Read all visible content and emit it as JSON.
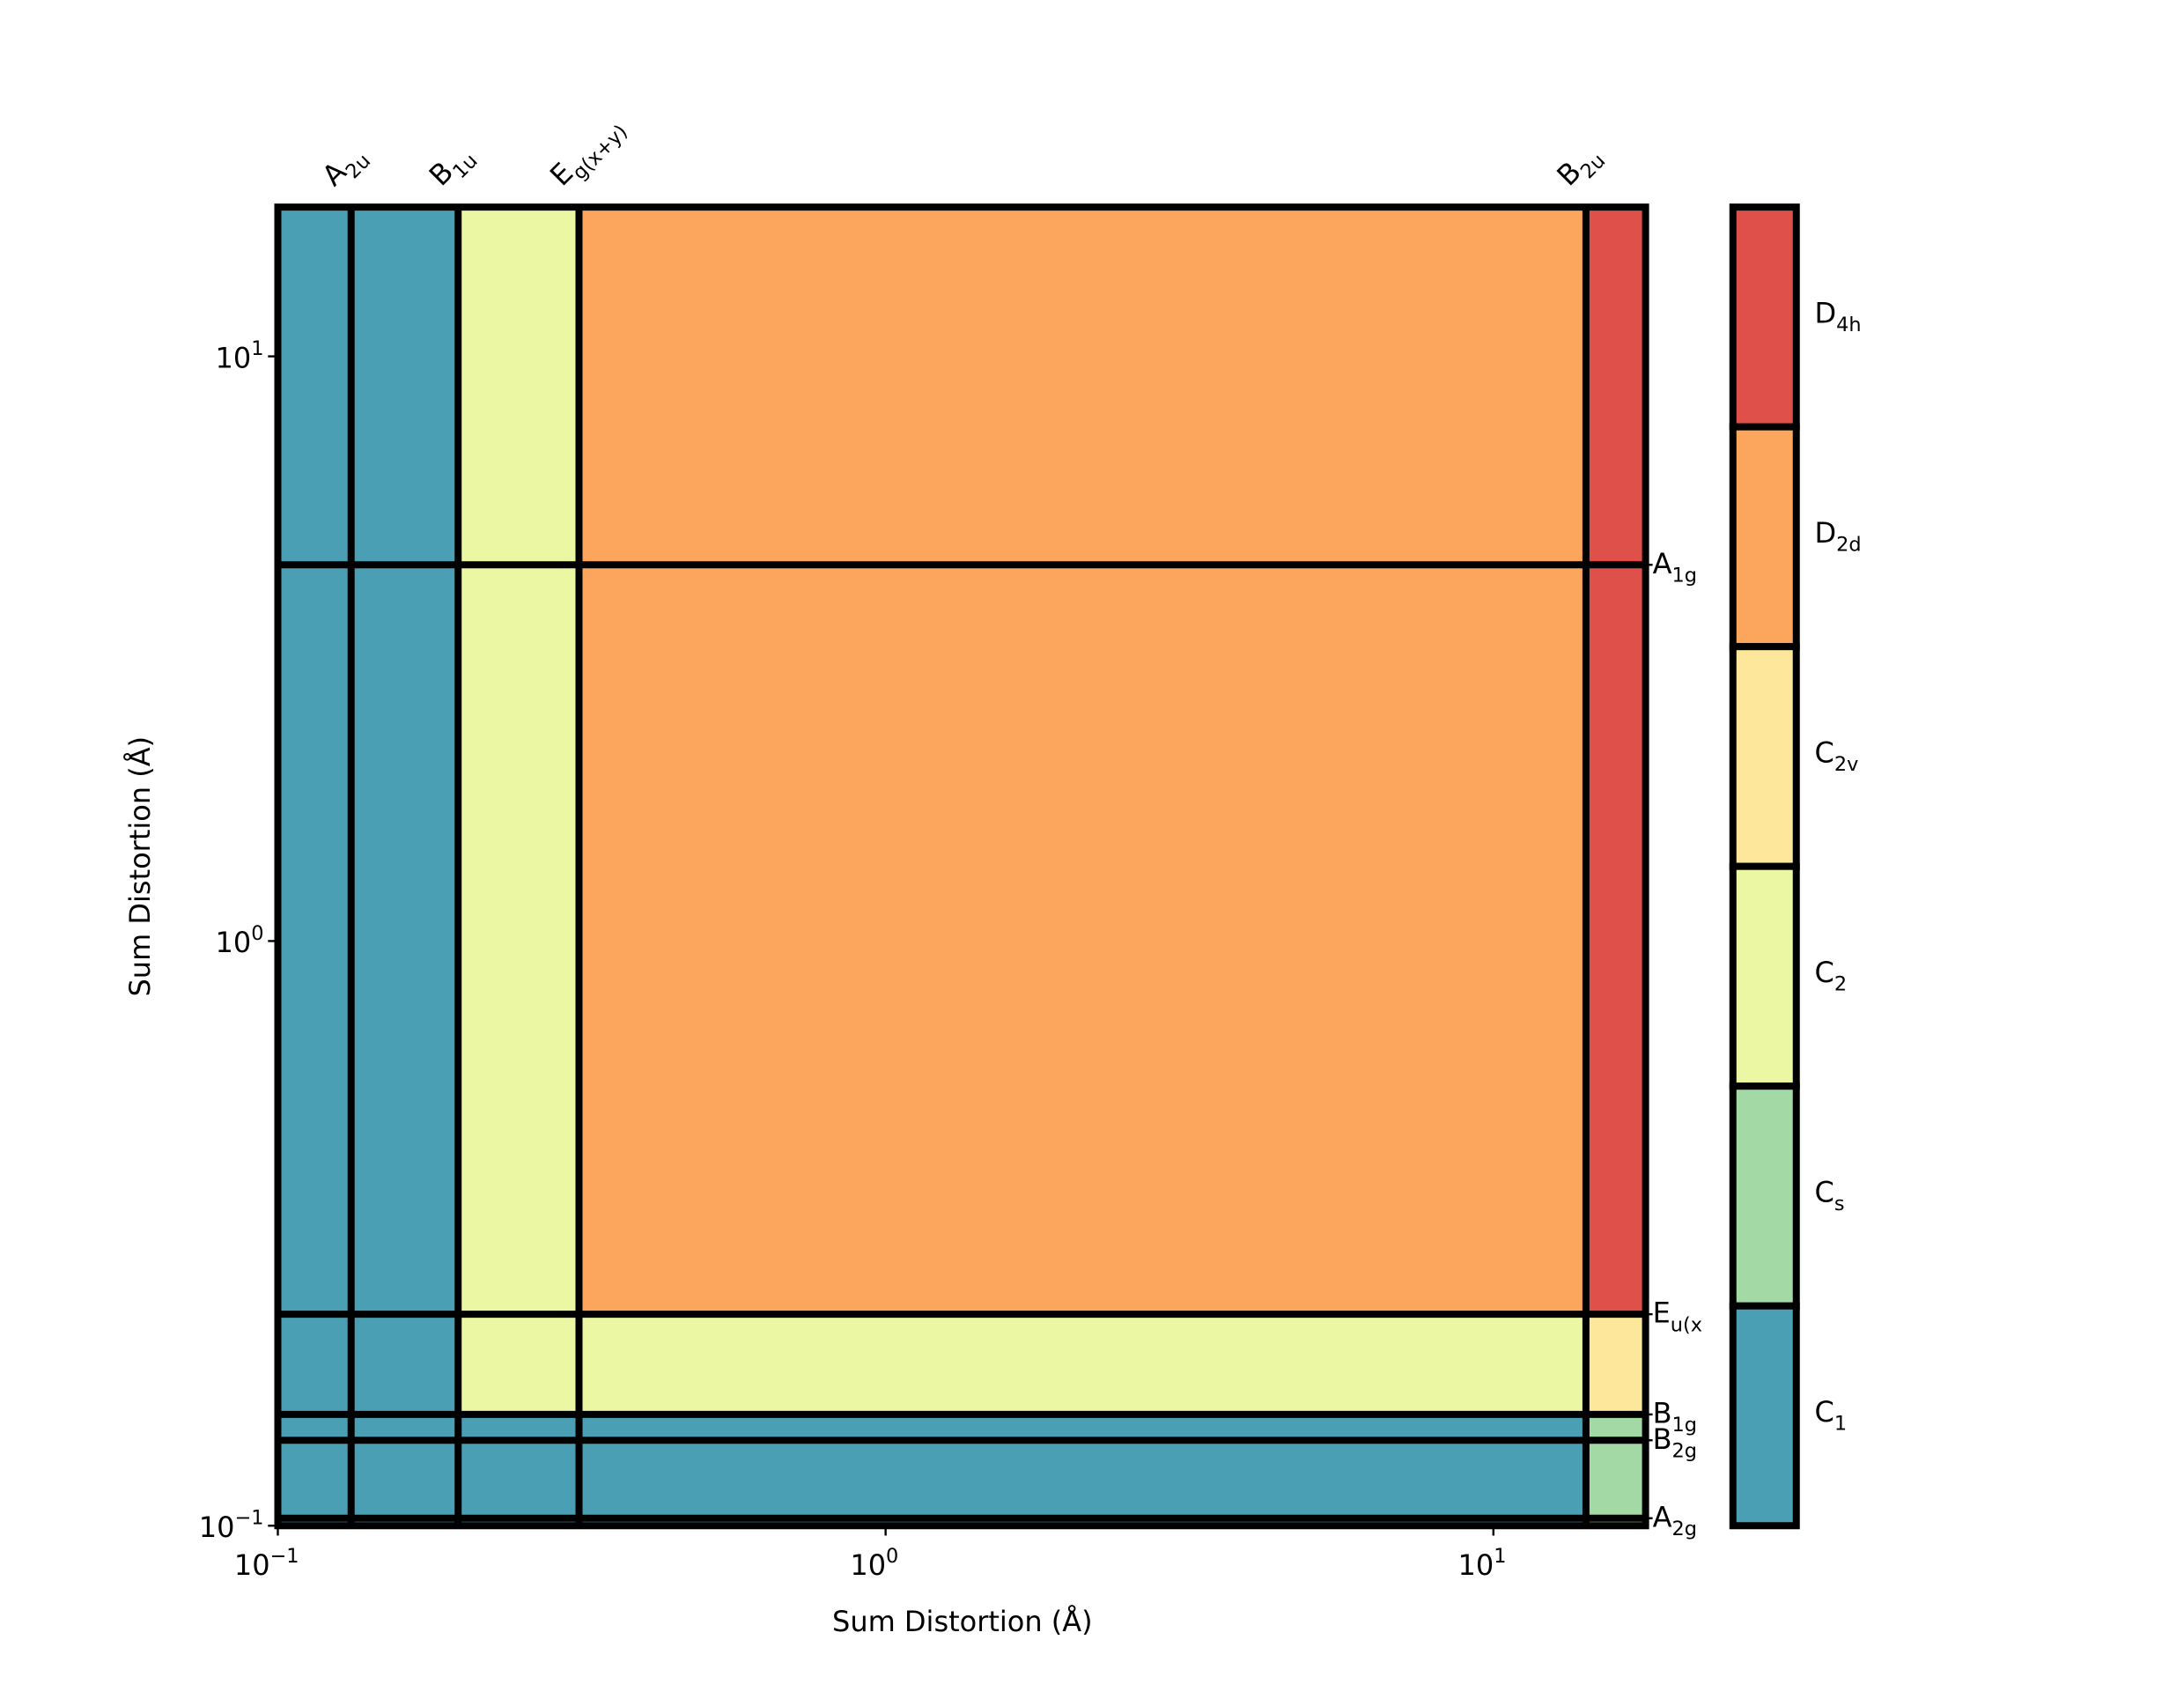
{
  "chart_data": {
    "type": "phase-map",
    "xlabel": "Sum Distortion (Å)",
    "ylabel": "Sum Distortion (Å)",
    "xscale": "log",
    "yscale": "log",
    "xlim": [
      0.1,
      17.8
    ],
    "ylim": [
      0.1,
      18.0
    ],
    "xticks": [
      {
        "value": 0.1,
        "label": {
          "base": "10",
          "sup": "−1"
        }
      },
      {
        "value": 1,
        "label": {
          "base": "10",
          "sup": "0"
        }
      },
      {
        "value": 10,
        "label": {
          "base": "10",
          "sup": "1"
        }
      }
    ],
    "yticks": [
      {
        "value": 0.1,
        "label": {
          "base": "10",
          "sup": "−1"
        }
      },
      {
        "value": 1,
        "label": {
          "base": "10",
          "sup": "0"
        }
      },
      {
        "value": 10,
        "label": {
          "base": "10",
          "sup": "1"
        }
      }
    ],
    "x_thresholds": [
      {
        "value": 0.132,
        "label": {
          "base": "A",
          "sub": "2u"
        }
      },
      {
        "value": 0.198,
        "label": {
          "base": "B",
          "sub": "1u"
        }
      },
      {
        "value": 0.313,
        "label": {
          "base": "E",
          "sub": "g(x+y)"
        }
      },
      {
        "value": 14.2,
        "label": {
          "base": "B",
          "sub": "2u"
        }
      }
    ],
    "y_thresholds": [
      {
        "value": 0.103,
        "label": {
          "base": "A",
          "sub": "2g"
        }
      },
      {
        "value": 0.14,
        "label": {
          "base": "B",
          "sub": "2g"
        }
      },
      {
        "value": 0.155,
        "label": {
          "base": "B",
          "sub": "1g"
        }
      },
      {
        "value": 0.23,
        "label": {
          "base": "E",
          "sub": "u(x"
        }
      },
      {
        "value": 4.4,
        "label": {
          "base": "A",
          "sub": "1g"
        }
      }
    ],
    "categories": [
      {
        "name": {
          "base": "D",
          "sub": "4h"
        },
        "color": "#e0504b"
      },
      {
        "name": {
          "base": "D",
          "sub": "2d"
        },
        "color": "#fca55d"
      },
      {
        "name": {
          "base": "C",
          "sub": "2v"
        },
        "color": "#fde79a"
      },
      {
        "name": {
          "base": "C",
          "sub": "2"
        },
        "color": "#ecf7a3"
      },
      {
        "name": {
          "base": "C",
          "sub": "s"
        },
        "color": "#a3d9a5"
      },
      {
        "name": {
          "base": "C",
          "sub": "1"
        },
        "color": "#4a9fb5"
      }
    ],
    "cells": [
      [
        5,
        5,
        5,
        5,
        4
      ],
      [
        5,
        5,
        5,
        5,
        4
      ],
      [
        5,
        5,
        5,
        5,
        4
      ],
      [
        5,
        5,
        3,
        3,
        2
      ],
      [
        5,
        5,
        3,
        1,
        0
      ],
      [
        5,
        5,
        3,
        1,
        0
      ]
    ]
  }
}
